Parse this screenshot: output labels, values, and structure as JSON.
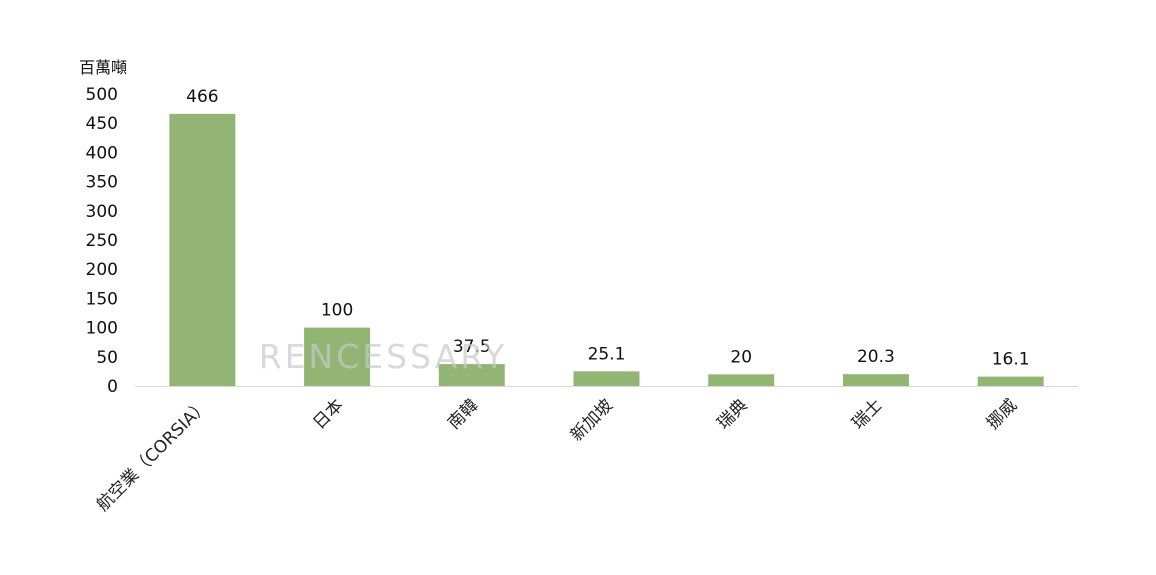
{
  "chart_data": {
    "type": "bar",
    "unit_label": "百萬噸",
    "categories": [
      "航空業（CORSIA）",
      "日本",
      "南韓",
      "新加坡",
      "瑞典",
      "瑞士",
      "挪威"
    ],
    "values": [
      466,
      100,
      37.5,
      25.1,
      20,
      20.3,
      16.1
    ],
    "value_labels": [
      "466",
      "100",
      "37.5",
      "25.1",
      "20",
      "20.3",
      "16.1"
    ],
    "y_ticks": [
      "0",
      "50",
      "100",
      "150",
      "200",
      "250",
      "300",
      "350",
      "400",
      "450",
      "500"
    ],
    "ylim": [
      0,
      500
    ],
    "bar_color": "#93b574",
    "grid": false,
    "legend": "none"
  },
  "watermark": "RENCESSARY"
}
